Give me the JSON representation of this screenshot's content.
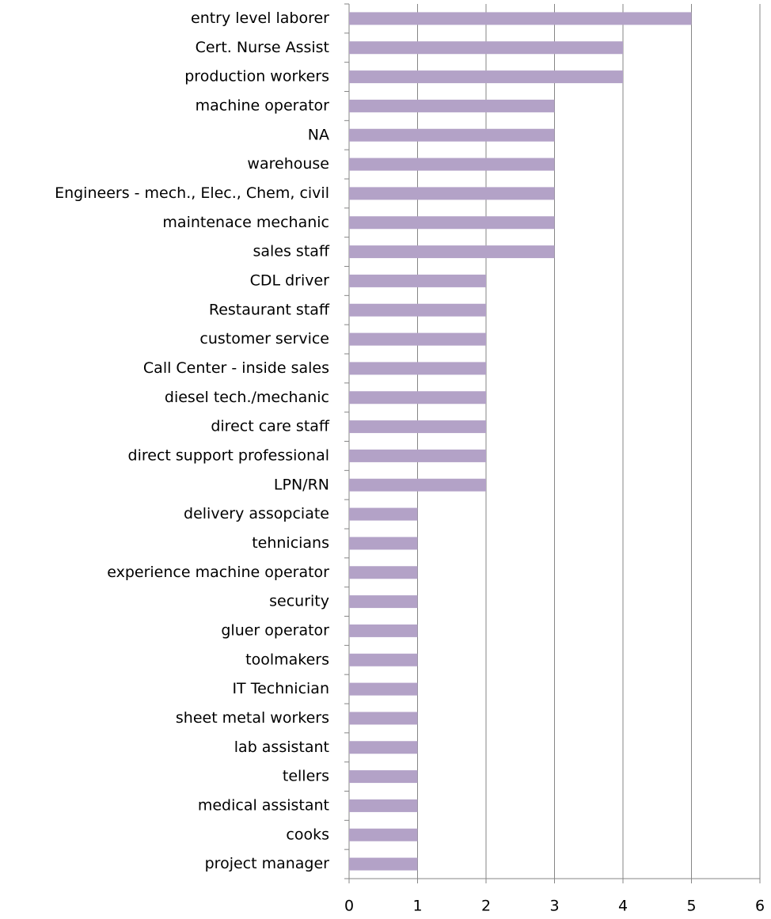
{
  "chart_data": {
    "type": "bar",
    "orientation": "horizontal",
    "categories": [
      "entry level laborer",
      "Cert. Nurse Assist",
      "production workers",
      "machine operator",
      "NA",
      "warehouse",
      "Engineers - mech., Elec., Chem, civil",
      "maintenace mechanic",
      "sales staff",
      "CDL driver",
      "Restaurant staff",
      "customer service",
      "Call Center - inside sales",
      "diesel tech./mechanic",
      "direct care staff",
      "direct support professional",
      "LPN/RN",
      "delivery assopciate",
      "tehnicians",
      "experience machine operator",
      "security",
      "gluer operator",
      "toolmakers",
      "IT Technician",
      "sheet metal workers",
      "lab assistant",
      "tellers",
      "medical assistant",
      "cooks",
      "project manager"
    ],
    "values": [
      5,
      4,
      4,
      3,
      3,
      3,
      3,
      3,
      3,
      2,
      2,
      2,
      2,
      2,
      2,
      2,
      2,
      1,
      1,
      1,
      1,
      1,
      1,
      1,
      1,
      1,
      1,
      1,
      1,
      1
    ],
    "color": "#b3a2c7",
    "xlim": [
      0,
      6
    ],
    "xticks": [
      0,
      1,
      2,
      3,
      4,
      5,
      6
    ],
    "grid": true
  }
}
